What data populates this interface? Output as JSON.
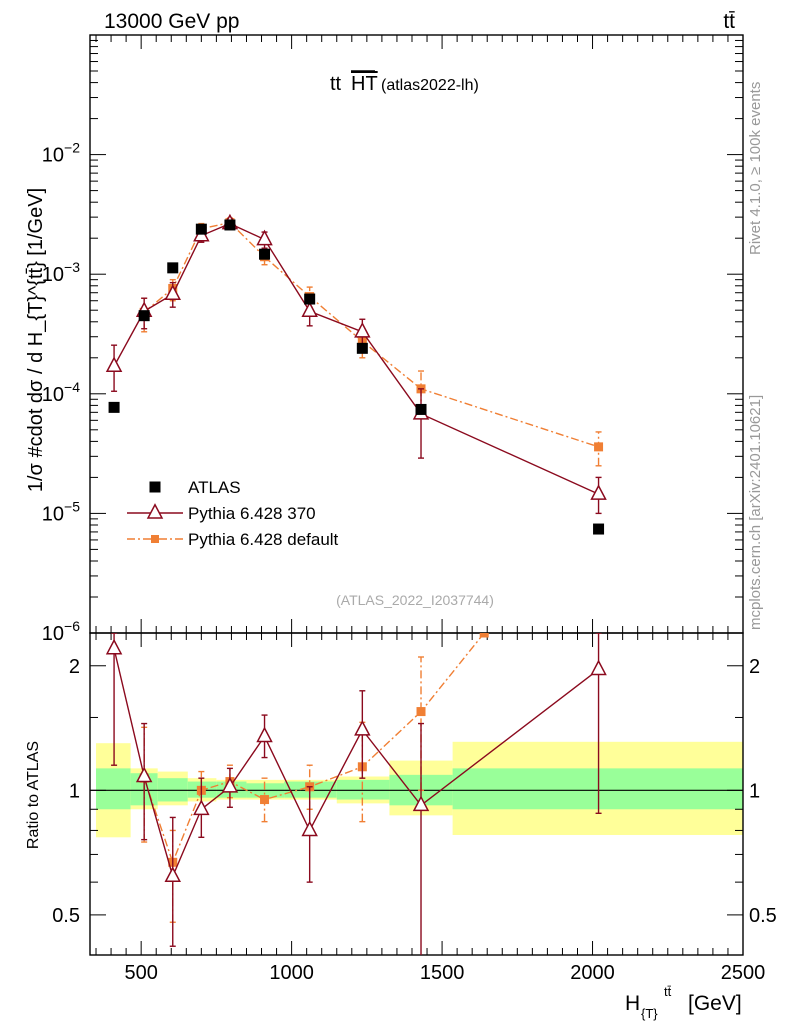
{
  "header": {
    "left": "13000 GeV pp",
    "right": "tt̄"
  },
  "side": {
    "top": "Rivet 4.1.0, ≥ 100k events",
    "bottom": "mcplots.cern.ch [arXiv:2401.10621]"
  },
  "chart_data": [
    {
      "type": "scatter",
      "panel": "main",
      "title_main": "tt",
      "title_over": "HT",
      "title_sub": "(atlas2022-lh)",
      "watermark": "(ATLAS_2022_I2037744)",
      "ylabel": "1/σ #cdot dσ / d H_{T}^{tt̄} [1/GeV]",
      "yscale": "log",
      "ylim": [
        1e-06,
        0.1
      ],
      "xlim": [
        330,
        2500
      ],
      "ytick_labels": [
        {
          "base": "10",
          "exp": "−2",
          "value": 0.01
        },
        {
          "base": "10",
          "exp": "−3",
          "value": 0.001
        },
        {
          "base": "10",
          "exp": "−4",
          "value": 0.0001
        },
        {
          "base": "10",
          "exp": "−5",
          "value": 1e-05
        },
        {
          "base": "10",
          "exp": "−6",
          "value": 1e-06
        }
      ],
      "series": [
        {
          "name": "ATLAS",
          "color": "#000000",
          "marker": "square",
          "x": [
            410,
            510,
            605,
            700,
            795,
            910,
            1060,
            1235,
            1430,
            2020
          ],
          "y": [
            7.7e-05,
            0.00045,
            0.00113,
            0.00238,
            0.00258,
            0.00147,
            0.00062,
            0.00024,
            7.4e-05,
            7.4e-06
          ]
        },
        {
          "name": "Pythia 6.428 370",
          "color": "#8b0a1e",
          "marker": "open-triangle",
          "x": [
            410,
            510,
            605,
            700,
            795,
            910,
            1060,
            1235,
            1430,
            2020
          ],
          "y": [
            0.00017,
            0.00049,
            0.00068,
            0.0021,
            0.00265,
            0.00195,
            0.00049,
            0.00033,
            6.8e-05,
            1.45e-05
          ],
          "err_lo": [
            0.000105,
            0.00035,
            0.00053,
            0.00185,
            0.0024,
            0.00165,
            0.00037,
            0.00025,
            2.9e-05,
            1e-05
          ],
          "err_hi": [
            0.000255,
            0.00063,
            0.00085,
            0.00235,
            0.0029,
            0.00225,
            0.0006,
            0.00042,
            0.00011,
            2e-05
          ]
        },
        {
          "name": "Pythia 6.428 default",
          "color": "#f07f34",
          "marker": "filled-square-small",
          "line": "dash-dot",
          "x": [
            410,
            510,
            605,
            700,
            795,
            910,
            1060,
            1235,
            1430,
            2020
          ],
          "y": [
            null,
            0.00048,
            0.00076,
            0.0024,
            0.0027,
            0.0014,
            0.00065,
            0.000275,
            0.00011,
            3.6e-05
          ],
          "err_lo": [
            null,
            0.00033,
            0.0006,
            0.00215,
            0.00245,
            0.0012,
            0.00053,
            0.0002,
            7e-05,
            2.5e-05
          ],
          "err_hi": [
            null,
            0.00063,
            0.0009,
            0.00265,
            0.00295,
            0.0016,
            0.00078,
            0.00034,
            0.000155,
            4.8e-05
          ]
        }
      ],
      "legend_position": "lower-left"
    },
    {
      "type": "scatter",
      "panel": "ratio",
      "ylabel": "Ratio to ATLAS",
      "xlabel_base": "H",
      "xlabel_sub": "{T}",
      "xlabel_sup": "tt̄",
      "xlabel_unit": "[GeV]",
      "ylim": [
        0.4,
        2.4
      ],
      "yscale": "log",
      "xlim": [
        330,
        2500
      ],
      "xtick_labels": [
        "500",
        "1000",
        "1500",
        "2000",
        "2500"
      ],
      "xtick_values": [
        500,
        1000,
        1500,
        2000,
        2500
      ],
      "ytick_labels": [
        "2",
        "1",
        "0.5"
      ],
      "ytick_values": [
        2,
        1,
        0.5
      ],
      "reference_line": 1,
      "bands": {
        "edges": [
          350,
          465,
          555,
          655,
          750,
          850,
          975,
          1150,
          1325,
          1535,
          2500
        ],
        "inner_lo": [
          0.9,
          0.92,
          0.94,
          0.96,
          0.96,
          0.96,
          0.96,
          0.95,
          0.92,
          0.9
        ],
        "inner_hi": [
          1.13,
          1.1,
          1.07,
          1.05,
          1.05,
          1.04,
          1.05,
          1.06,
          1.09,
          1.13
        ],
        "outer_lo": [
          0.77,
          0.9,
          0.92,
          0.94,
          0.95,
          0.95,
          0.95,
          0.93,
          0.87,
          0.78
        ],
        "outer_hi": [
          1.3,
          1.13,
          1.11,
          1.07,
          1.06,
          1.06,
          1.06,
          1.08,
          1.18,
          1.31
        ],
        "inner_color": "#99ff99",
        "outer_color": "#ffff99"
      },
      "series": [
        {
          "name": "Pythia 6.428 370",
          "color": "#8b0a1e",
          "x": [
            410,
            510,
            605,
            700,
            795,
            910,
            1060,
            1235,
            1430,
            2020
          ],
          "y": [
            2.2,
            1.08,
            0.62,
            0.9,
            1.02,
            1.35,
            0.8,
            1.4,
            0.92,
            1.96
          ],
          "err_lo": [
            1.15,
            0.76,
            0.42,
            0.77,
            0.91,
            1.2,
            0.6,
            1.07,
            0.37,
            0.88
          ],
          "err_hi": [
            2.4,
            1.45,
            0.86,
            1.07,
            1.13,
            1.52,
            1.02,
            1.74,
            1.45,
            2.4
          ]
        },
        {
          "name": "Pythia 6.428 default",
          "color": "#f07f34",
          "x": [
            510,
            605,
            700,
            795,
            910,
            1060,
            1235,
            1430,
            1640
          ],
          "y": [
            1.07,
            0.67,
            1.0,
            1.05,
            0.95,
            1.02,
            1.14,
            1.55,
            2.4
          ],
          "err_lo": [
            0.75,
            0.48,
            0.9,
            0.96,
            0.84,
            0.9,
            0.84,
            1.0,
            null
          ],
          "err_hi": [
            1.42,
            0.8,
            1.11,
            1.15,
            1.07,
            1.15,
            1.46,
            2.1,
            null
          ]
        }
      ]
    }
  ]
}
